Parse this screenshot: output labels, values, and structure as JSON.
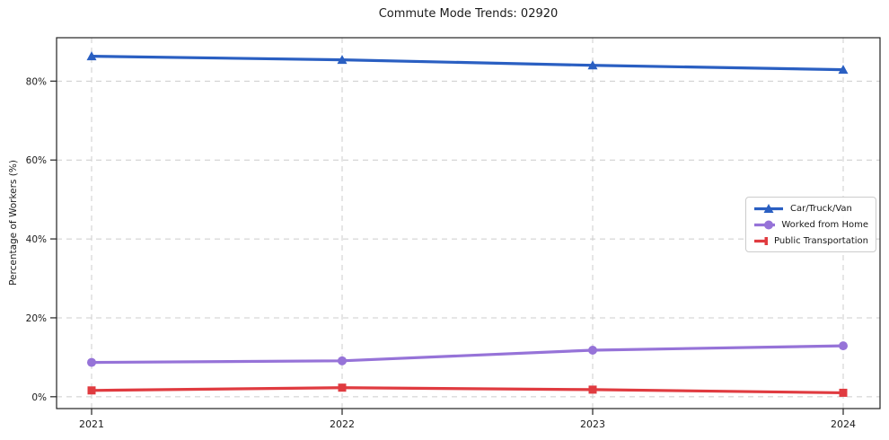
{
  "page": {
    "title": "Commute Mode Trends: 02920"
  },
  "chart_data": {
    "type": "line",
    "title": "Commute Mode Trends: 02920",
    "xlabel": "",
    "ylabel": "Percentage of Workers (%)",
    "x": [
      2021,
      2022,
      2023,
      2024
    ],
    "x_tick_labels": [
      "2021",
      "2022",
      "2023",
      "2024"
    ],
    "y_ticks": [
      0,
      20,
      40,
      60,
      80
    ],
    "y_tick_labels": [
      "0%",
      "20%",
      "40%",
      "60%",
      "80%"
    ],
    "ylim": [
      -3,
      91
    ],
    "grid": "dashed-both-axes",
    "legend": {
      "position": "center-right"
    },
    "series": [
      {
        "name": "Car/Truck/Van",
        "color": "#2a5fc2",
        "marker": "triangle",
        "values": [
          86.3,
          85.4,
          84.0,
          82.9
        ]
      },
      {
        "name": "Worked from Home",
        "color": "#9673d8",
        "marker": "circle",
        "values": [
          8.7,
          9.1,
          11.8,
          12.9
        ]
      },
      {
        "name": "Public Transportation",
        "color": "#e03b40",
        "marker": "square",
        "values": [
          1.6,
          2.3,
          1.8,
          1.0
        ]
      }
    ],
    "style": {
      "grid_color": "#cccccc",
      "spine_color": "#222222",
      "text_color": "#1a1a1a"
    }
  }
}
